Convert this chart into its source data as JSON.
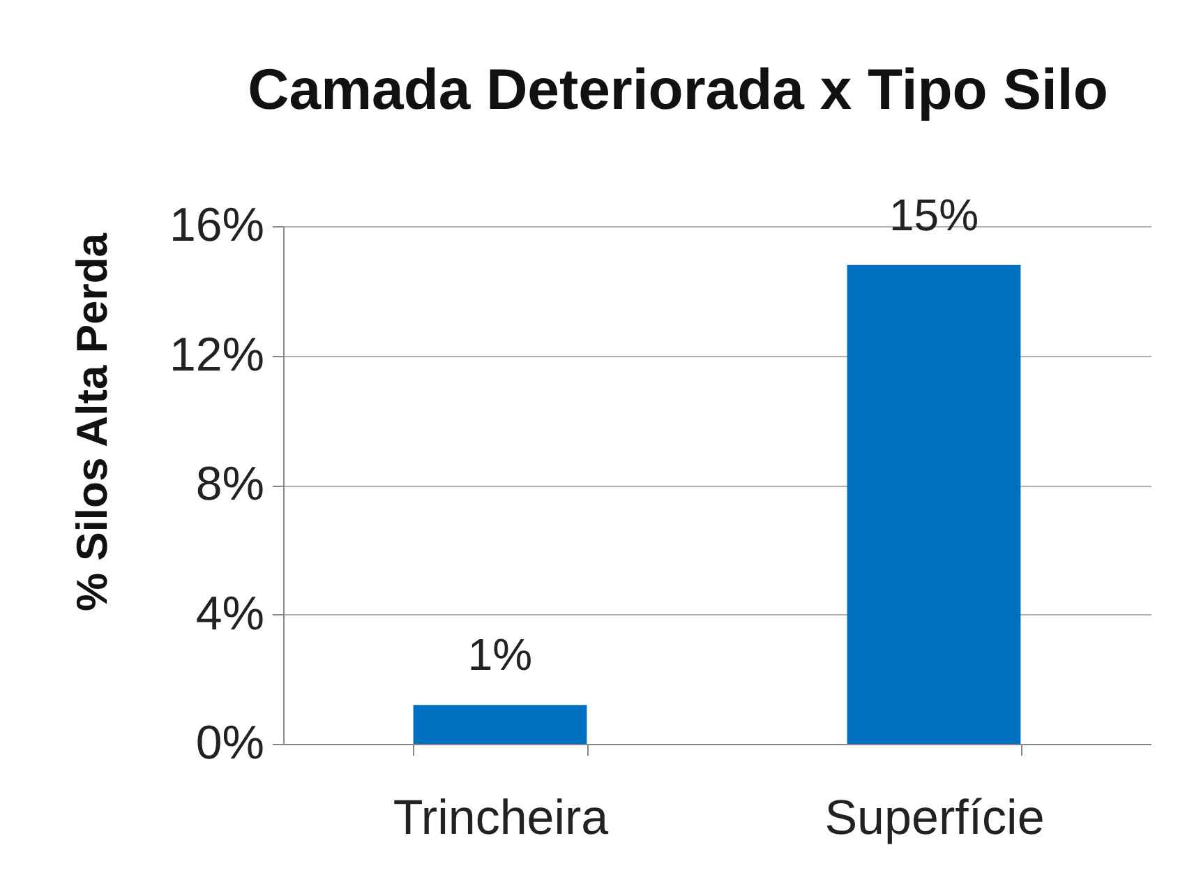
{
  "chart_data": {
    "type": "bar",
    "title": "Camada Deteriorada x Tipo Silo",
    "ylabel": "% Silos Alta Perda",
    "categories": [
      "Trincheira",
      "Superfície"
    ],
    "values": [
      1.2,
      14.8
    ],
    "value_labels": [
      "1%",
      "15%"
    ],
    "color": "#0070c0",
    "ylim": [
      0,
      16
    ],
    "yticks": [
      {
        "value": 0,
        "label": "0%"
      },
      {
        "value": 4,
        "label": "4%"
      },
      {
        "value": 8,
        "label": "8%"
      },
      {
        "value": 12,
        "label": "12%"
      },
      {
        "value": 16,
        "label": "16%"
      }
    ],
    "grid": "y"
  }
}
